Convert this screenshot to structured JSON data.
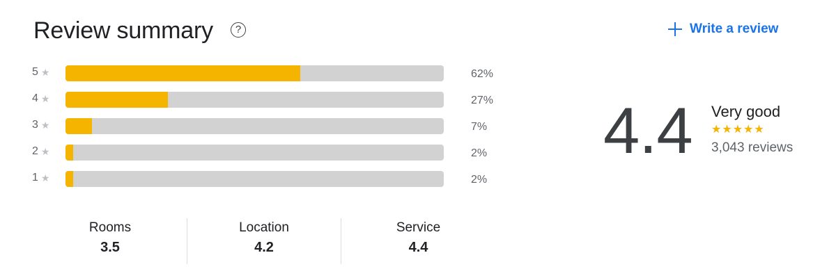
{
  "header": {
    "title": "Review summary",
    "help_glyph": "?",
    "help_icon": "help-circle-icon",
    "write_review_label": "Write a review",
    "write_review_icon": "plus-icon"
  },
  "distribution": [
    {
      "stars": "5",
      "percent_label": "62%",
      "fraction": 0.62
    },
    {
      "stars": "4",
      "percent_label": "27%",
      "fraction": 0.27
    },
    {
      "stars": "3",
      "percent_label": "7%",
      "fraction": 0.07
    },
    {
      "stars": "2",
      "percent_label": "2%",
      "fraction": 0.02
    },
    {
      "stars": "1",
      "percent_label": "2%",
      "fraction": 0.02
    }
  ],
  "categories": [
    {
      "name": "Rooms",
      "score": "3.5"
    },
    {
      "name": "Location",
      "score": "4.2"
    },
    {
      "name": "Service",
      "score": "4.4"
    }
  ],
  "overall": {
    "score": "4.4",
    "label": "Very good",
    "rating_fraction": 0.88,
    "review_count": "3,043 reviews"
  },
  "colors": {
    "bar_fill": "#f4b400",
    "bar_track": "#d2d2d2",
    "accent": "#1a73e8",
    "star_empty": "#dadce0"
  }
}
